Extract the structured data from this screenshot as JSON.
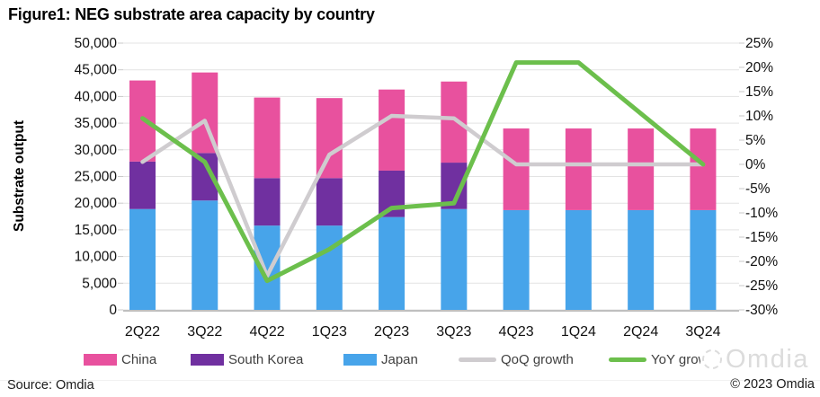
{
  "chart_data": {
    "type": "combo-stacked-bar-line",
    "title": "Figure1: NEG substrate area capacity by country",
    "categories": [
      "2Q22",
      "3Q22",
      "4Q22",
      "1Q23",
      "2Q23",
      "3Q23",
      "4Q23",
      "1Q24",
      "2Q24",
      "3Q24"
    ],
    "bar_series": [
      {
        "name": "China",
        "color": "#E8519E",
        "values": [
          15200,
          15100,
          15100,
          15000,
          15200,
          15200,
          15300,
          15300,
          15300,
          15300
        ]
      },
      {
        "name": "South Korea",
        "color": "#7030A0",
        "values": [
          8900,
          8900,
          8900,
          8900,
          8700,
          8700,
          0,
          0,
          0,
          0
        ]
      },
      {
        "name": "Japan",
        "color": "#47A4EA",
        "values": [
          18900,
          20500,
          15800,
          15800,
          17400,
          18900,
          18700,
          18700,
          18700,
          18700
        ]
      }
    ],
    "stack_order_bottom_to_top": [
      "Japan",
      "South Korea",
      "China"
    ],
    "line_series": [
      {
        "name": "QoQ growth",
        "color": "#CFCCCF",
        "axis": "right",
        "unit": "%",
        "values_pct": [
          0.5,
          9,
          -23,
          2,
          10,
          9.5,
          0,
          0,
          0,
          0
        ]
      },
      {
        "name": "YoY growth",
        "color": "#6CBF4C",
        "axis": "right",
        "unit": "%",
        "values_pct": [
          9.5,
          0.5,
          -24,
          -17.5,
          -9,
          -8,
          21,
          21,
          10.5,
          0
        ]
      }
    ],
    "left_axis": {
      "label": "Substrate output",
      "min": 0,
      "max": 50000,
      "step": 5000,
      "tick_labels": [
        "50,000",
        "45,000",
        "40,000",
        "35,000",
        "30,000",
        "25,000",
        "20,000",
        "15,000",
        "10,000",
        "5,000",
        "0"
      ]
    },
    "right_axis": {
      "label": "",
      "min": -30,
      "max": 25,
      "step": 5,
      "tick_labels": [
        "25%",
        "20%",
        "15%",
        "10%",
        "5%",
        "0%",
        "-5%",
        "-10%",
        "-15%",
        "-20%",
        "-25%",
        "-30%"
      ]
    },
    "grid": true,
    "legend_position": "bottom"
  },
  "watermark": {
    "logo": "omdia-swirl-logo",
    "text": "Omdia"
  },
  "footer": {
    "source": "Source: Omdia",
    "copyright": "© 2023 Omdia"
  }
}
